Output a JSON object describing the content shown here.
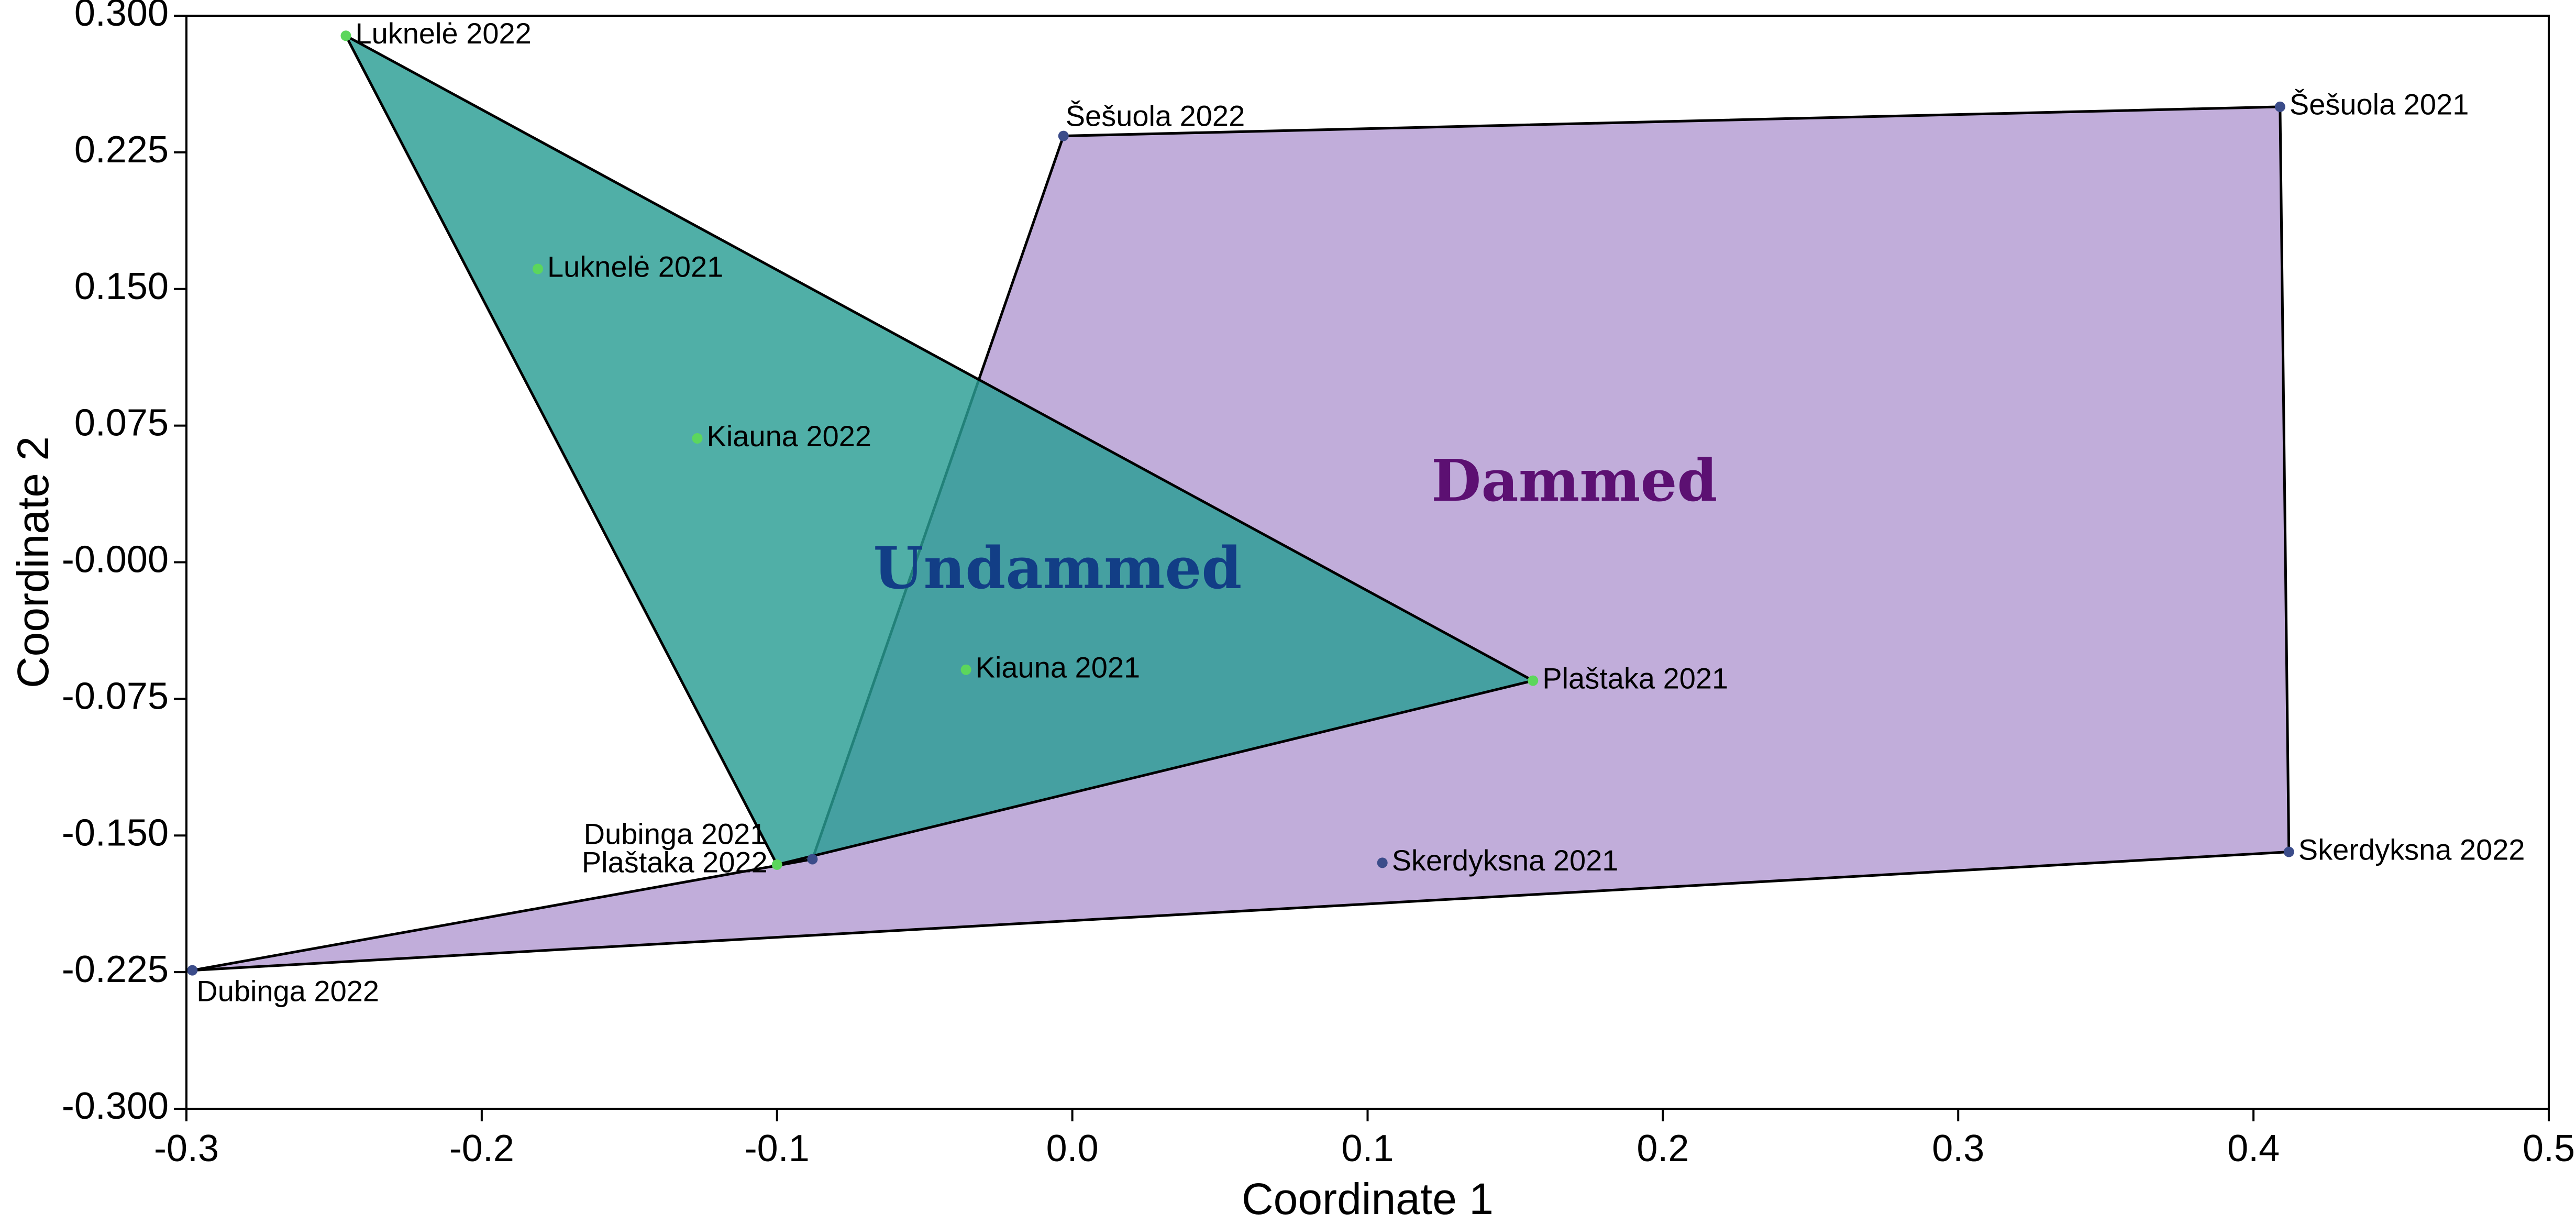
{
  "chart_data": {
    "type": "scatter",
    "title": "",
    "xlabel": "Coordinate 1",
    "ylabel": "Coordinate 2",
    "xlim": [
      -0.3,
      0.5
    ],
    "ylim": [
      -0.3,
      0.3
    ],
    "x_ticks": [
      -0.3,
      -0.2,
      -0.1,
      0.0,
      0.1,
      0.2,
      0.3,
      0.4,
      0.5
    ],
    "x_tick_labels": [
      "-0.3",
      "-0.2",
      "-0.1",
      "0.0",
      "0.1",
      "0.2",
      "0.3",
      "0.4",
      "0.5"
    ],
    "y_ticks": [
      0.3,
      0.225,
      0.15,
      0.075,
      0.0,
      -0.075,
      -0.15,
      -0.225,
      -0.3
    ],
    "y_tick_labels": [
      "0.300",
      "0.225",
      "0.150",
      "0.075",
      "-0.000",
      "-0.075",
      "-0.150",
      "-0.225",
      "-0.300"
    ],
    "grid": false,
    "legend": "none",
    "groups": [
      {
        "name": "Dammed",
        "fill_color": "#b39bd2",
        "point_color": "#3b4c8a",
        "label_color": "#5c1072",
        "label_pos": [
          0.17,
          0.042
        ],
        "hull_order": [
          0,
          1,
          2,
          3,
          4
        ],
        "points": [
          {
            "label": "Šešuola 2022",
            "x": -0.003,
            "y": 0.234,
            "label_side": "above-right"
          },
          {
            "label": "Šešuola 2021",
            "x": 0.409,
            "y": 0.25,
            "label_side": "right"
          },
          {
            "label": "Skerdyksna 2022",
            "x": 0.412,
            "y": -0.159,
            "label_side": "right"
          },
          {
            "label": "Dubinga 2022",
            "x": -0.298,
            "y": -0.224,
            "label_side": "below-right"
          },
          {
            "label": "Dubinga 2021",
            "x": -0.088,
            "y": -0.163,
            "label_side": "above-left"
          },
          {
            "label": "Skerdyksna 2021",
            "x": 0.105,
            "y": -0.165,
            "label_side": "right"
          }
        ]
      },
      {
        "name": "Undammed",
        "fill_color": "#2a9d94",
        "point_color": "#5cd65c",
        "label_color": "#123e86",
        "label_pos": [
          -0.005,
          -0.006
        ],
        "hull_order": [
          0,
          1,
          2
        ],
        "points": [
          {
            "label": "Luknelė 2022",
            "x": -0.246,
            "y": 0.289,
            "label_side": "right"
          },
          {
            "label": "Plaštaka 2021",
            "x": 0.156,
            "y": -0.065,
            "label_side": "right"
          },
          {
            "label": "Plaštaka 2022",
            "x": -0.1,
            "y": -0.166,
            "label_side": "left"
          },
          {
            "label": "Luknelė 2021",
            "x": -0.181,
            "y": 0.161,
            "label_side": "right"
          },
          {
            "label": "Kiauna 2022",
            "x": -0.127,
            "y": 0.068,
            "label_side": "right"
          },
          {
            "label": "Kiauna 2021",
            "x": -0.036,
            "y": -0.059,
            "label_side": "right"
          }
        ]
      }
    ]
  }
}
